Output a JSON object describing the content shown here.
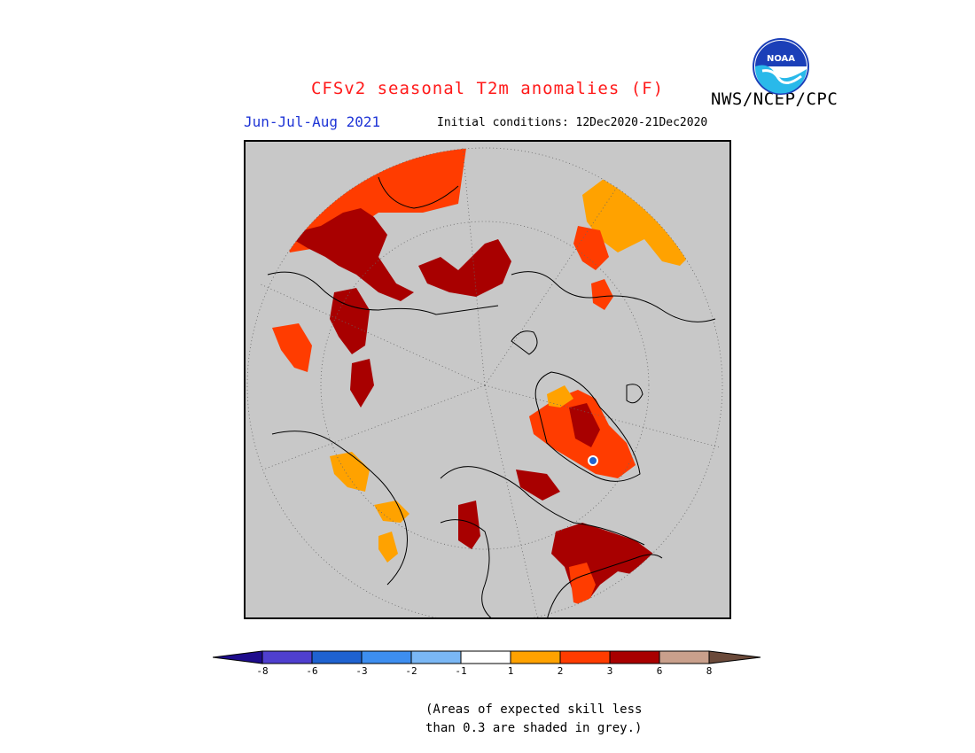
{
  "header": {
    "title": "CFSv2 seasonal T2m anomalies (F)",
    "agency": "NWS/NCEP/CPC",
    "period": "Jun-Jul-Aug 2021",
    "initial_conditions": "Initial conditions: 12Dec2020-21Dec2020",
    "logo_text": "NOAA"
  },
  "legend": {
    "arrow_left_color": "#1e0c8c",
    "arrow_right_color": "#6b4a3a",
    "swatches": [
      {
        "color": "#1e0c8c",
        "from": "",
        "to": "-8"
      },
      {
        "color": "#4f3fcf",
        "from": "-8",
        "to": "-6"
      },
      {
        "color": "#1f62d0",
        "from": "-6",
        "to": "-3"
      },
      {
        "color": "#3d8ef0",
        "from": "-3",
        "to": "-2"
      },
      {
        "color": "#7ab7f5",
        "from": "-2",
        "to": "-1"
      },
      {
        "color": "#ffffff",
        "from": "-1",
        "to": "1"
      },
      {
        "color": "#ffa200",
        "from": "1",
        "to": "2"
      },
      {
        "color": "#ff3c00",
        "from": "2",
        "to": "3"
      },
      {
        "color": "#a80000",
        "from": "3",
        "to": "6"
      },
      {
        "color": "#c9a08c",
        "from": "6",
        "to": "8"
      }
    ],
    "tick_labels": [
      "-8",
      "-6",
      "-3",
      "-2",
      "-1",
      "1",
      "2",
      "3",
      "6",
      "8"
    ]
  },
  "note": {
    "line1": "(Areas of expected skill less",
    "line2": "than 0.3 are shaded in grey.)"
  },
  "map": {
    "background_color": "#c8c8c8",
    "projection": "north-polar-stereographic",
    "anomaly_regions": [
      {
        "name": "northwest-africa-europe",
        "category": "2-3"
      },
      {
        "name": "eastern-europe-middle-east",
        "category": "3-6"
      },
      {
        "name": "central-asia",
        "category": "3-6"
      },
      {
        "name": "east-asia",
        "category": "1-2"
      },
      {
        "name": "siberia",
        "category": "2-3"
      },
      {
        "name": "greenland",
        "category": "2-3"
      },
      {
        "name": "northeast-canada",
        "category": "3-6"
      },
      {
        "name": "western-north-america",
        "category": "1-2"
      }
    ]
  }
}
